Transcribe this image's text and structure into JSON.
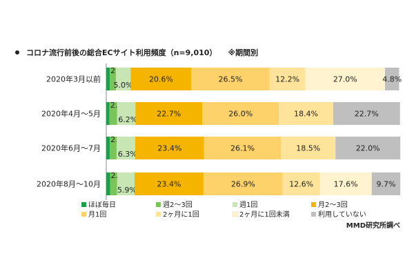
{
  "header": {
    "title": "コロナ流行前後の総合ECサイト利用頻度（n=9,010）",
    "note": "※期間別"
  },
  "source": "MMD研究所調べ",
  "chart_data": {
    "type": "bar",
    "orientation": "horizontal",
    "stacked": true,
    "percent": true,
    "categories": [
      "2020年3月以前",
      "2020年4月～5月",
      "2020年6月～7月",
      "2020年8月～10月"
    ],
    "series": [
      {
        "name": "ほぼ毎日",
        "color": "#1e9e4a",
        "values": [
          1.2,
          1.1,
          1.2,
          1.3
        ],
        "labels": [
          "",
          "",
          "",
          ""
        ]
      },
      {
        "name": "週2～3回",
        "color": "#7ac45a",
        "values": [
          2.1,
          2.6,
          2.3,
          2.4
        ],
        "labels": [
          "2.1%",
          "2.6%",
          "2.3%",
          "2.4%"
        ]
      },
      {
        "name": "週1回",
        "color": "#c8e6b4",
        "values": [
          5.0,
          6.2,
          6.3,
          5.9
        ],
        "labels": [
          "5.0%",
          "6.2%",
          "6.3%",
          "5.9%"
        ]
      },
      {
        "name": "月2～3回",
        "color": "#f4b400",
        "values": [
          20.6,
          22.7,
          23.4,
          23.4
        ],
        "labels": [
          "20.6%",
          "22.7%",
          "23.4%",
          "23.4%"
        ]
      },
      {
        "name": "月1回",
        "color": "#fdd26a",
        "values": [
          26.5,
          26.0,
          26.1,
          26.9
        ],
        "labels": [
          "26.5%",
          "26.0%",
          "26.1%",
          "26.9%"
        ]
      },
      {
        "name": "2ヶ月に1回",
        "color": "#fee49a",
        "values": [
          12.2,
          18.4,
          18.5,
          12.6
        ],
        "labels": [
          "12.2%",
          "18.4%",
          "18.5%",
          "12.6%"
        ]
      },
      {
        "name": "2ヶ月に1回未満",
        "color": "#fff4cf",
        "values": [
          27.0,
          0,
          0,
          17.6
        ],
        "labels": [
          "27.0%",
          "",
          "",
          "17.6%"
        ]
      },
      {
        "name": "利用していない",
        "color": "#bfbfbf",
        "values": [
          4.8,
          22.7,
          22.0,
          9.7
        ],
        "labels": [
          "4.8%",
          "22.7%",
          "22.0%",
          "9.7%"
        ]
      }
    ],
    "xlim": [
      0,
      100
    ],
    "grid": false,
    "legend_position": "bottom"
  }
}
